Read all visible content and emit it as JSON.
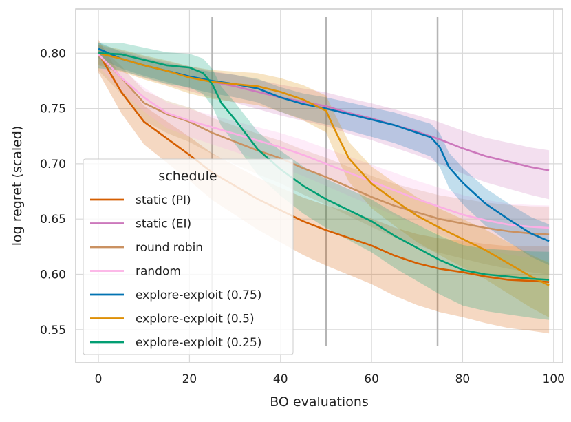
{
  "chart_data": {
    "type": "line",
    "title": "",
    "xlabel": "BO evaluations",
    "ylabel": "log regret (scaled)",
    "xlim": [
      -5,
      102
    ],
    "ylim": [
      0.52,
      0.84
    ],
    "xticks": [
      0,
      20,
      40,
      60,
      80,
      100
    ],
    "xtick_labels": [
      "0",
      "20",
      "40",
      "60",
      "80",
      "100"
    ],
    "yticks": [
      0.55,
      0.6,
      0.65,
      0.7,
      0.75,
      0.8
    ],
    "ytick_labels": [
      "0.55",
      "0.60",
      "0.65",
      "0.70",
      "0.75",
      "0.80"
    ],
    "grid": true,
    "legend": {
      "title": "schedule",
      "position": "lower-left"
    },
    "switch_markers": {
      "x": [
        25,
        50,
        74.5
      ],
      "y_range": [
        0.535,
        0.833
      ]
    },
    "series": [
      {
        "name": "static (PI)",
        "color": "#d55e00",
        "band_width": 0.032,
        "x": [
          0,
          5,
          10,
          15,
          20,
          25,
          30,
          35,
          40,
          45,
          50,
          55,
          60,
          65,
          70,
          75,
          80,
          85,
          90,
          95,
          99
        ],
        "y": [
          0.8,
          0.765,
          0.738,
          0.723,
          0.708,
          0.692,
          0.68,
          0.668,
          0.658,
          0.648,
          0.64,
          0.633,
          0.626,
          0.617,
          0.61,
          0.605,
          0.602,
          0.598,
          0.595,
          0.594,
          0.593
        ]
      },
      {
        "name": "static (EI)",
        "color": "#cc78bc",
        "band_width": 0.018,
        "x": [
          0,
          5,
          10,
          15,
          20,
          25,
          30,
          35,
          40,
          45,
          50,
          55,
          60,
          65,
          70,
          75,
          80,
          85,
          90,
          95,
          99
        ],
        "y": [
          0.8,
          0.795,
          0.789,
          0.784,
          0.779,
          0.774,
          0.77,
          0.765,
          0.76,
          0.756,
          0.752,
          0.746,
          0.741,
          0.735,
          0.729,
          0.722,
          0.714,
          0.707,
          0.702,
          0.697,
          0.694
        ]
      },
      {
        "name": "round robin",
        "color": "#ca9161",
        "band_width": 0.025,
        "x": [
          0,
          5,
          10,
          15,
          20,
          25,
          30,
          35,
          40,
          45,
          50,
          55,
          60,
          65,
          70,
          75,
          80,
          85,
          90,
          95,
          99
        ],
        "y": [
          0.798,
          0.778,
          0.755,
          0.745,
          0.738,
          0.728,
          0.72,
          0.712,
          0.705,
          0.696,
          0.688,
          0.679,
          0.67,
          0.662,
          0.656,
          0.65,
          0.646,
          0.642,
          0.639,
          0.637,
          0.636
        ]
      },
      {
        "name": "random",
        "color": "#fbafe4",
        "band_width": 0.02,
        "x": [
          0,
          5,
          10,
          15,
          20,
          25,
          30,
          35,
          40,
          45,
          50,
          55,
          60,
          65,
          70,
          75,
          80,
          85,
          90,
          95,
          99
        ],
        "y": [
          0.799,
          0.778,
          0.76,
          0.746,
          0.739,
          0.733,
          0.727,
          0.721,
          0.715,
          0.708,
          0.7,
          0.692,
          0.684,
          0.676,
          0.668,
          0.661,
          0.654,
          0.649,
          0.645,
          0.643,
          0.642
        ]
      },
      {
        "name": "explore-exploit (0.75)",
        "color": "#0173b2",
        "band_width": 0.015,
        "x": [
          0,
          5,
          10,
          15,
          20,
          25,
          30,
          35,
          40,
          45,
          50,
          55,
          60,
          65,
          70,
          73,
          75,
          77,
          80,
          85,
          90,
          95,
          99
        ],
        "y": [
          0.804,
          0.795,
          0.789,
          0.784,
          0.779,
          0.775,
          0.772,
          0.768,
          0.76,
          0.754,
          0.75,
          0.745,
          0.74,
          0.735,
          0.728,
          0.724,
          0.715,
          0.697,
          0.683,
          0.664,
          0.65,
          0.637,
          0.63
        ]
      },
      {
        "name": "explore-exploit (0.5)",
        "color": "#de8f05",
        "band_width": 0.02,
        "x": [
          0,
          5,
          10,
          15,
          20,
          25,
          30,
          35,
          40,
          45,
          50,
          52,
          55,
          60,
          65,
          70,
          75,
          80,
          85,
          90,
          95,
          99
        ],
        "y": [
          0.8,
          0.795,
          0.789,
          0.784,
          0.778,
          0.774,
          0.772,
          0.77,
          0.765,
          0.758,
          0.748,
          0.73,
          0.705,
          0.682,
          0.667,
          0.653,
          0.642,
          0.632,
          0.622,
          0.61,
          0.598,
          0.59
        ]
      },
      {
        "name": "explore-exploit (0.25)",
        "color": "#029e73",
        "band_width": 0.025,
        "x": [
          0,
          5,
          10,
          15,
          20,
          23,
          25,
          27,
          30,
          35,
          40,
          45,
          50,
          55,
          60,
          65,
          70,
          75,
          80,
          85,
          90,
          95,
          99
        ],
        "y": [
          0.8,
          0.799,
          0.794,
          0.789,
          0.787,
          0.782,
          0.772,
          0.755,
          0.74,
          0.713,
          0.695,
          0.68,
          0.668,
          0.658,
          0.648,
          0.635,
          0.624,
          0.613,
          0.604,
          0.6,
          0.598,
          0.596,
          0.595
        ]
      }
    ]
  }
}
